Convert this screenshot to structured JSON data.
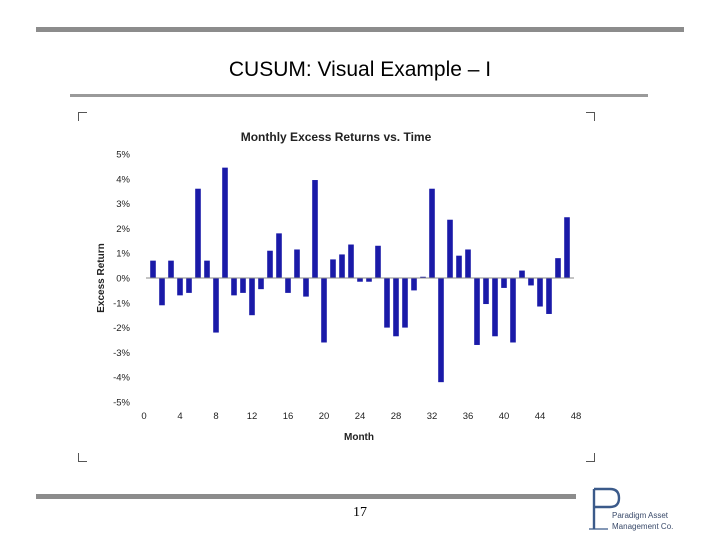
{
  "slide": {
    "title": "CUSUM: Visual Example – I",
    "page_number": "17"
  },
  "logo": {
    "line1": "Paradigm Asset",
    "line2": "Management Co."
  },
  "chart_data": {
    "type": "bar",
    "title": "Monthly Excess Returns vs. Time",
    "xlabel": "Month",
    "ylabel": "Excess Return",
    "ylim": [
      -5,
      5
    ],
    "xlim": [
      0,
      48
    ],
    "xticks": [
      "0",
      "4",
      "8",
      "12",
      "16",
      "20",
      "24",
      "28",
      "32",
      "36",
      "40",
      "44",
      "48"
    ],
    "yticks": [
      "5%",
      "4%",
      "3%",
      "2%",
      "1%",
      "0%",
      "-1%",
      "-2%",
      "-3%",
      "-4%",
      "-5%"
    ],
    "bar_color": "#1a1aa8",
    "x": [
      1,
      2,
      3,
      4,
      5,
      6,
      7,
      8,
      9,
      10,
      11,
      12,
      13,
      14,
      15,
      16,
      17,
      18,
      19,
      20,
      21,
      22,
      23,
      24,
      25,
      26,
      27,
      28,
      29,
      30,
      31,
      32,
      33,
      34,
      35,
      36,
      37,
      38,
      39,
      40,
      41,
      42,
      43,
      44,
      45,
      46,
      47,
      48
    ],
    "values": [
      0.7,
      -1.1,
      0.7,
      -0.7,
      -0.6,
      3.6,
      0.7,
      -2.2,
      4.45,
      -0.7,
      -0.6,
      -1.5,
      -0.45,
      1.1,
      1.8,
      -0.6,
      1.15,
      -0.75,
      3.95,
      -2.6,
      0.75,
      0.95,
      1.35,
      -0.15,
      -0.15,
      1.3,
      -2.0,
      -2.35,
      -2.0,
      -0.5,
      0.05,
      3.6,
      -4.2,
      2.35,
      0.9,
      1.15,
      -2.7,
      -1.05,
      -2.35,
      -0.4,
      -2.6,
      0.3,
      -0.3,
      -1.15,
      -1.45,
      0.8,
      2.45,
      0.0
    ],
    "grid": false,
    "legend": "none"
  }
}
